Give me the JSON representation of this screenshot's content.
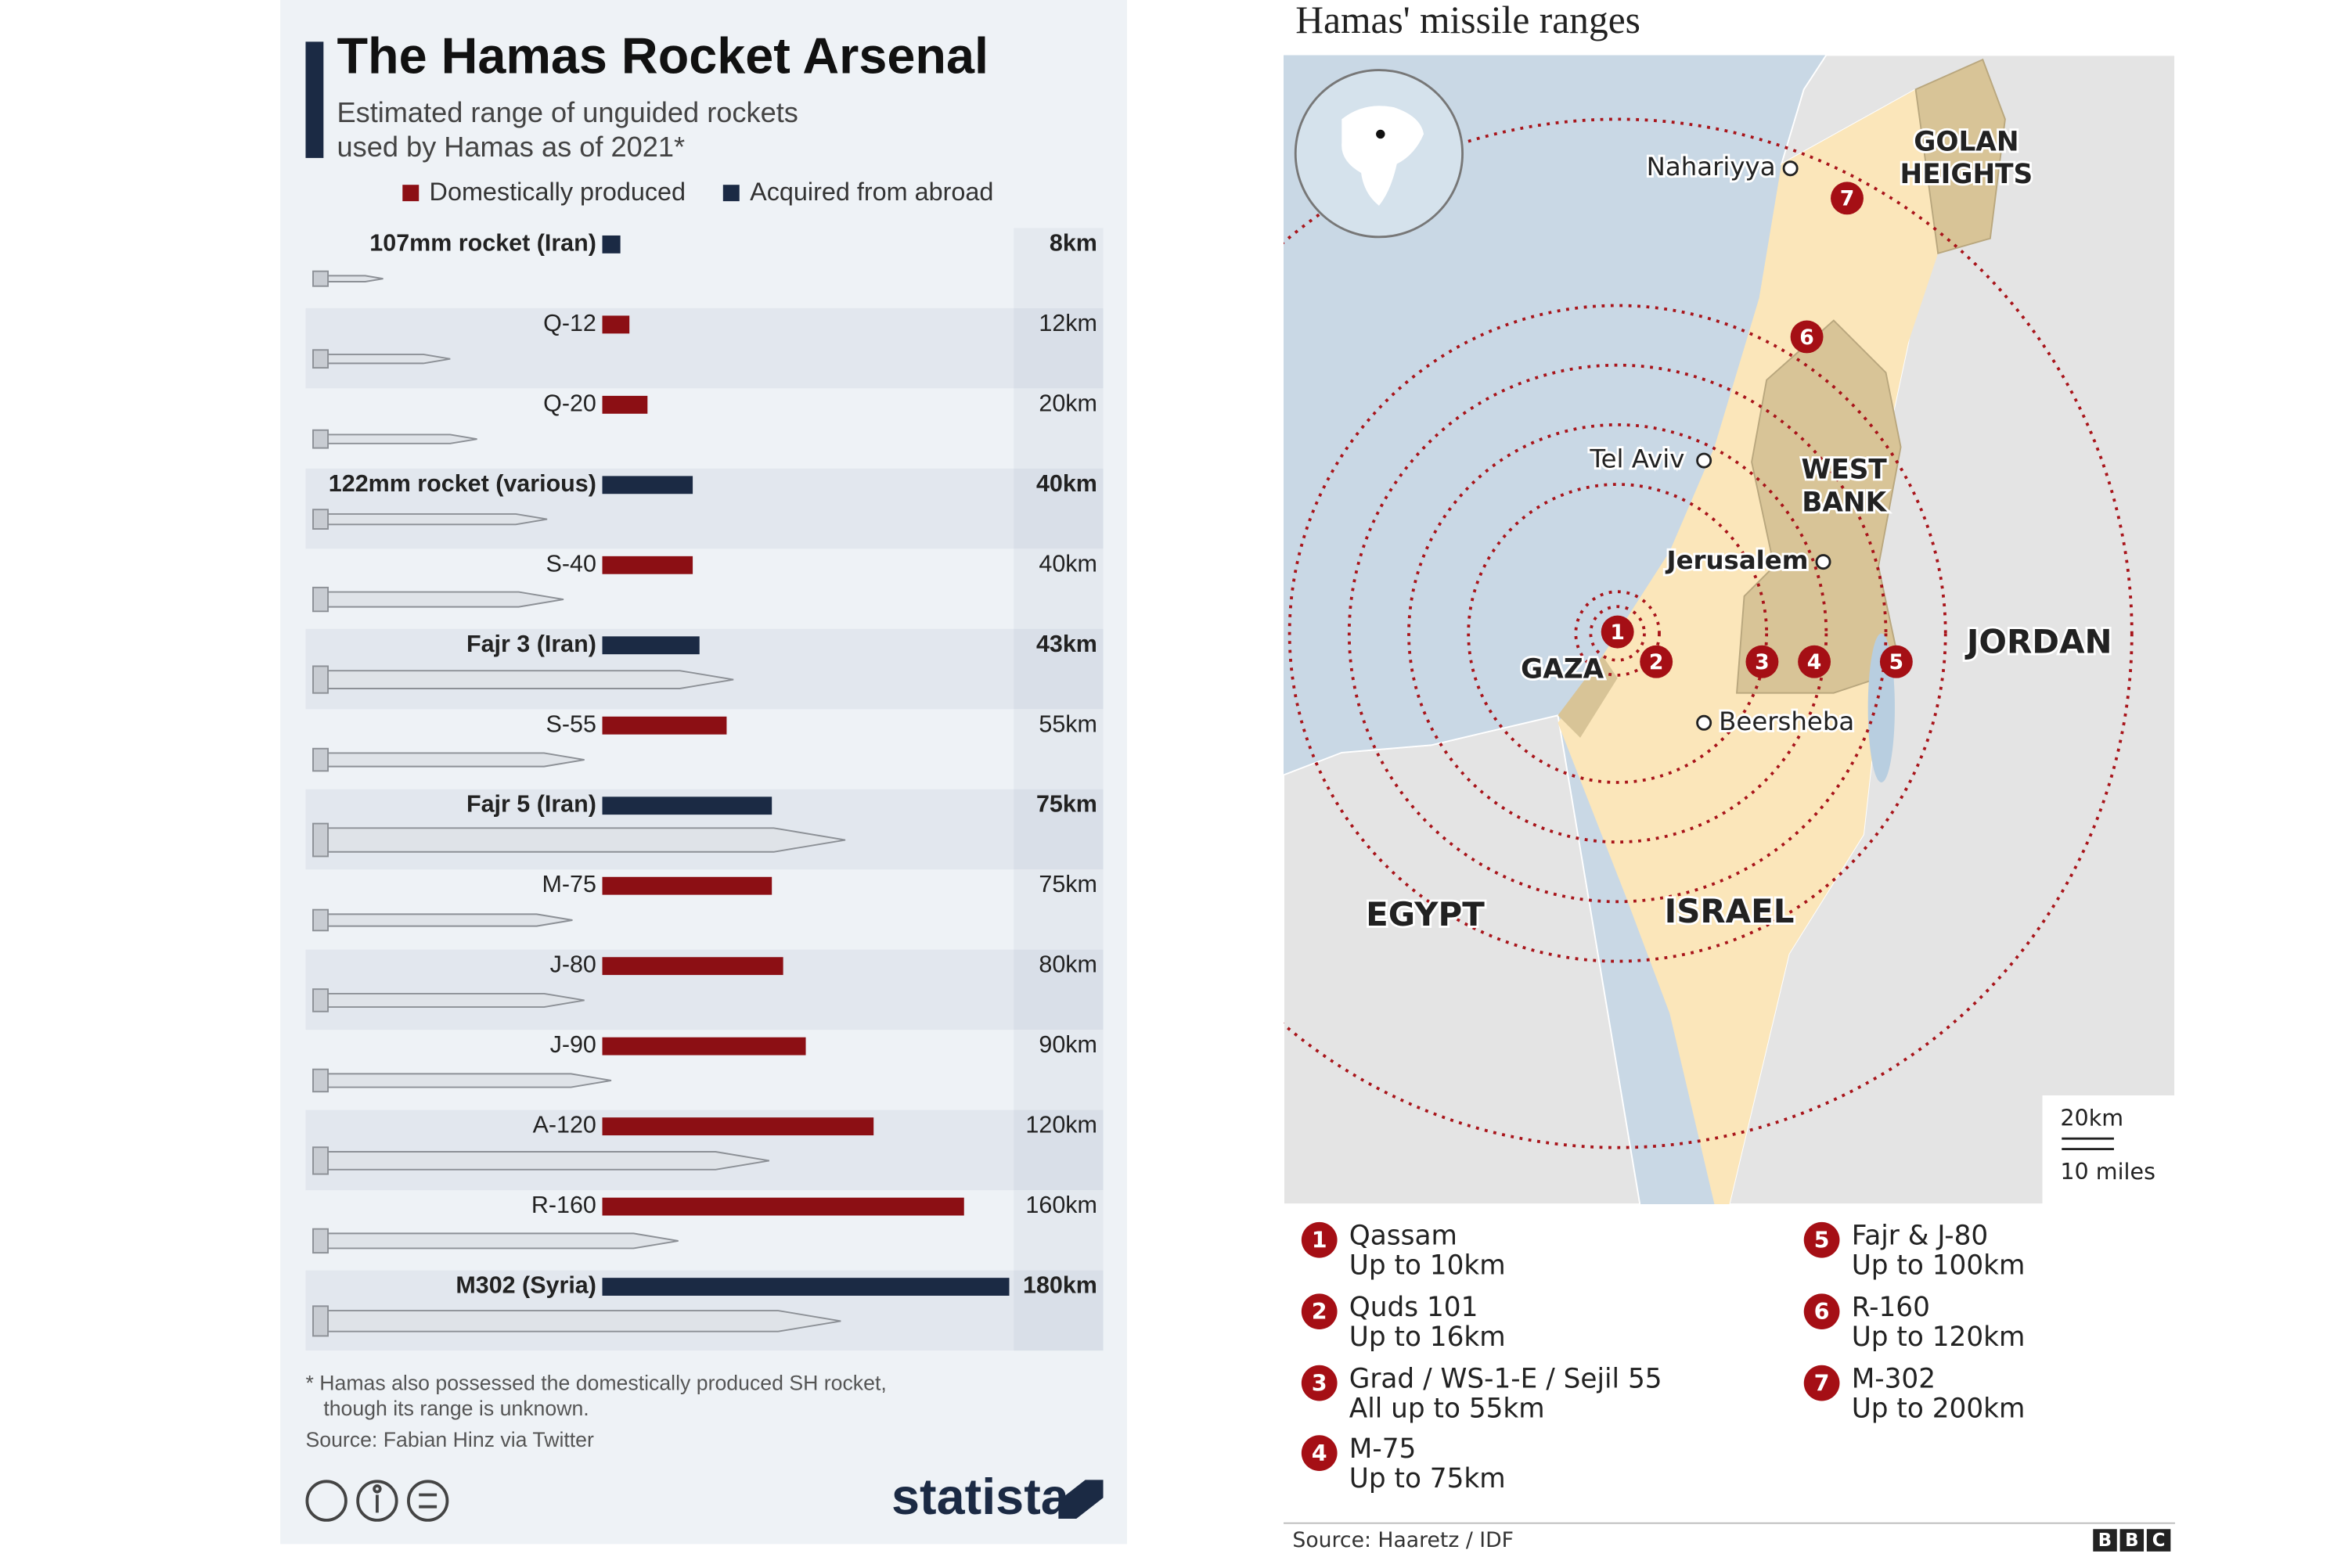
{
  "chart_data": {
    "type": "bar",
    "orientation": "horizontal",
    "title": "The Hamas Rocket Arsenal",
    "subtitle": [
      "Estimated range of unguided rockets",
      "used by Hamas as of 2021*"
    ],
    "categories": [
      "107mm rocket (Iran)",
      "Q-12",
      "Q-20",
      "122mm rocket (various)",
      "S-40",
      "Fajr 3 (Iran)",
      "S-55",
      "Fajr 5 (Iran)",
      "M-75",
      "J-80",
      "J-90",
      "A-120",
      "R-160",
      "M302 (Syria)"
    ],
    "series": [
      {
        "name": "Domestically produced",
        "color": "#8c0f14",
        "values": [
          null,
          12,
          20,
          null,
          40,
          null,
          55,
          null,
          75,
          80,
          90,
          120,
          160,
          null
        ],
        "value_labels": [
          null,
          "12km",
          "20km",
          null,
          "40km",
          null,
          "55km",
          null,
          "75km",
          "80km",
          "90km",
          "120km",
          "160km",
          null
        ]
      },
      {
        "name": "Acquired from abroad",
        "color": "#1b2a44",
        "values": [
          8,
          null,
          null,
          40,
          null,
          43,
          null,
          75,
          null,
          null,
          null,
          null,
          null,
          180
        ],
        "value_labels": [
          "8km",
          null,
          null,
          "40km",
          null,
          "43km",
          null,
          "75km",
          null,
          null,
          null,
          null,
          null,
          "180km"
        ]
      }
    ],
    "xlim": [
      0,
      180
    ],
    "footnote": [
      "* Hamas also possessed the domestically produced SH rocket,",
      "though its range is unknown."
    ],
    "source": "Source: Fabian Hinz via Twitter",
    "logo": "statista"
  },
  "map": {
    "title": "Hamas' missile ranges",
    "places": [
      [
        "Nahariyya"
      ],
      [
        "GOLAN",
        "HEIGHTS"
      ],
      [
        "Tel Aviv"
      ],
      [
        "WEST",
        "BANK"
      ],
      [
        "Jerusalem"
      ],
      [
        "GAZA"
      ],
      [
        "Beersheba"
      ],
      [
        "JORDAN"
      ],
      [
        "EGYPT"
      ],
      [
        "ISRAEL"
      ]
    ],
    "markers": [
      1,
      2,
      3,
      4,
      5,
      6,
      7
    ],
    "legend": [
      {
        "number": 1,
        "name": "Qassam",
        "range": "Up to 10km"
      },
      {
        "number": 2,
        "name": "Quds 101",
        "range": "Up to 16km"
      },
      {
        "number": 3,
        "name": "Grad / WS-1-E / Sejil 55",
        "range": "All up to 55km"
      },
      {
        "number": 4,
        "name": "M-75",
        "range": "Up to 75km"
      },
      {
        "number": 5,
        "name": "Fajr & J-80",
        "range": "Up to 100km"
      },
      {
        "number": 6,
        "name": "R-160",
        "range": "Up to 120km"
      },
      {
        "number": 7,
        "name": "M-302",
        "range": "Up to 200km"
      }
    ],
    "scale": [
      "20km",
      "10 miles"
    ],
    "source": "Source: Haaretz / IDF",
    "logo": [
      "B",
      "B",
      "C"
    ]
  }
}
